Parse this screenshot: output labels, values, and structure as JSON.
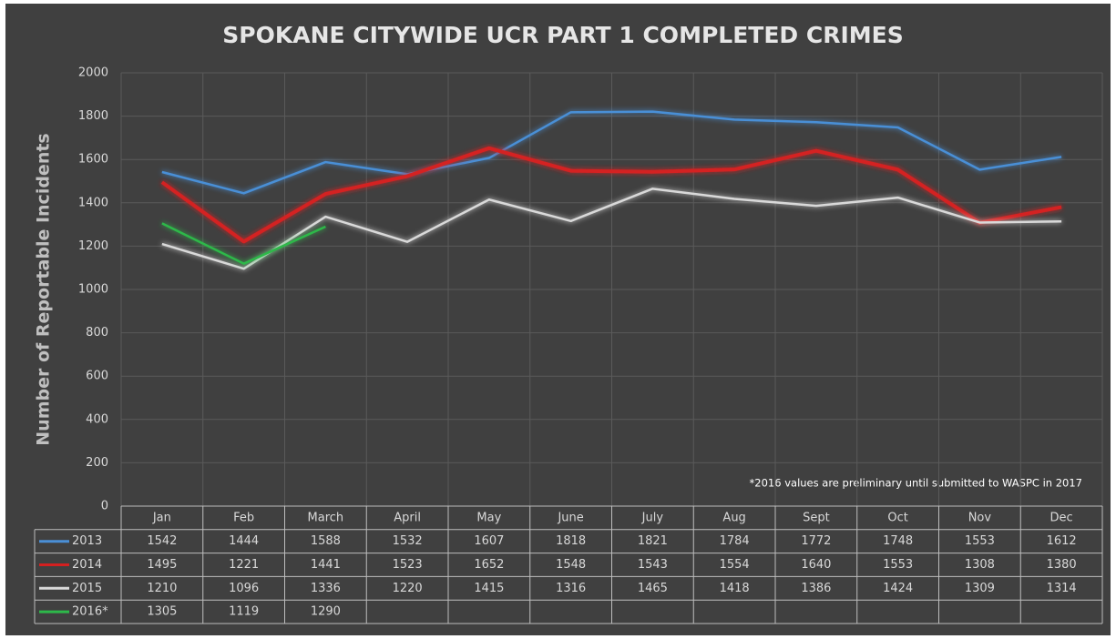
{
  "chart_data": {
    "type": "line",
    "title": "SPOKANE CITYWIDE UCR PART 1 COMPLETED CRIMES",
    "y_label": "Number of  Reportable Incidents",
    "annotation": "*2016 values are preliminary until submitted to WASPC in 2017",
    "categories": [
      "Jan",
      "Feb",
      "March",
      "April",
      "May",
      "June",
      "July",
      "Aug",
      "Sept",
      "Oct",
      "Nov",
      "Dec"
    ],
    "series": [
      {
        "name": "2013",
        "color": "#4a8fd6",
        "values": [
          1542,
          1444,
          1588,
          1532,
          1607,
          1818,
          1821,
          1784,
          1772,
          1748,
          1553,
          1612
        ]
      },
      {
        "name": "2014",
        "color": "#d42020",
        "values": [
          1495,
          1221,
          1441,
          1523,
          1652,
          1548,
          1543,
          1554,
          1640,
          1553,
          1308,
          1380
        ]
      },
      {
        "name": "2015",
        "color": "#d9d9d9",
        "values": [
          1210,
          1096,
          1336,
          1220,
          1415,
          1316,
          1465,
          1418,
          1386,
          1424,
          1309,
          1314
        ]
      },
      {
        "name": "2016*",
        "color": "#2db84a",
        "values": [
          1305,
          1119,
          1290,
          null,
          null,
          null,
          null,
          null,
          null,
          null,
          null,
          null
        ]
      }
    ],
    "ylim": [
      0,
      2000
    ],
    "yticks": [
      0,
      200,
      400,
      600,
      800,
      1000,
      1200,
      1400,
      1600,
      1800,
      2000
    ],
    "grid": true
  }
}
